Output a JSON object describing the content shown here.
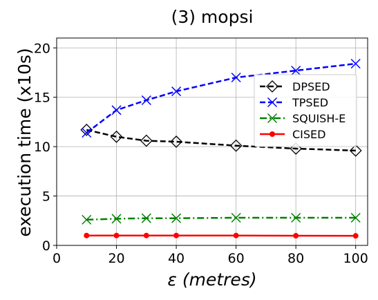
{
  "chart_data": {
    "type": "line",
    "title": "(3) mopsi",
    "xlabel": "ε (metres)",
    "ylabel": "execution time (x10s)",
    "xlim": [
      0,
      104
    ],
    "ylim": [
      0,
      21
    ],
    "x_ticks": [
      0,
      20,
      40,
      60,
      80,
      100
    ],
    "y_ticks": [
      0,
      5,
      10,
      15,
      20
    ],
    "grid": true,
    "legend_position": "right",
    "x": [
      10,
      20,
      30,
      40,
      60,
      80,
      100
    ],
    "series": [
      {
        "name": "DPSED",
        "values": [
          11.7,
          11.0,
          10.6,
          10.5,
          10.1,
          9.8,
          9.6
        ],
        "color": "#000000",
        "dash": "dashed",
        "marker": "diamond"
      },
      {
        "name": "TPSED",
        "values": [
          11.4,
          13.7,
          14.7,
          15.6,
          17.0,
          17.7,
          18.4
        ],
        "color": "#0000ff",
        "dash": "dashed",
        "marker": "x"
      },
      {
        "name": "SQUISH-E",
        "values": [
          2.6,
          2.7,
          2.75,
          2.75,
          2.8,
          2.8,
          2.8
        ],
        "color": "#008000",
        "dash": "dashdot",
        "marker": "x"
      },
      {
        "name": "CISED",
        "values": [
          1.0,
          1.0,
          1.0,
          1.0,
          1.0,
          0.98,
          0.97
        ],
        "color": "#ff0000",
        "dash": "solid",
        "marker": "dot"
      }
    ]
  }
}
